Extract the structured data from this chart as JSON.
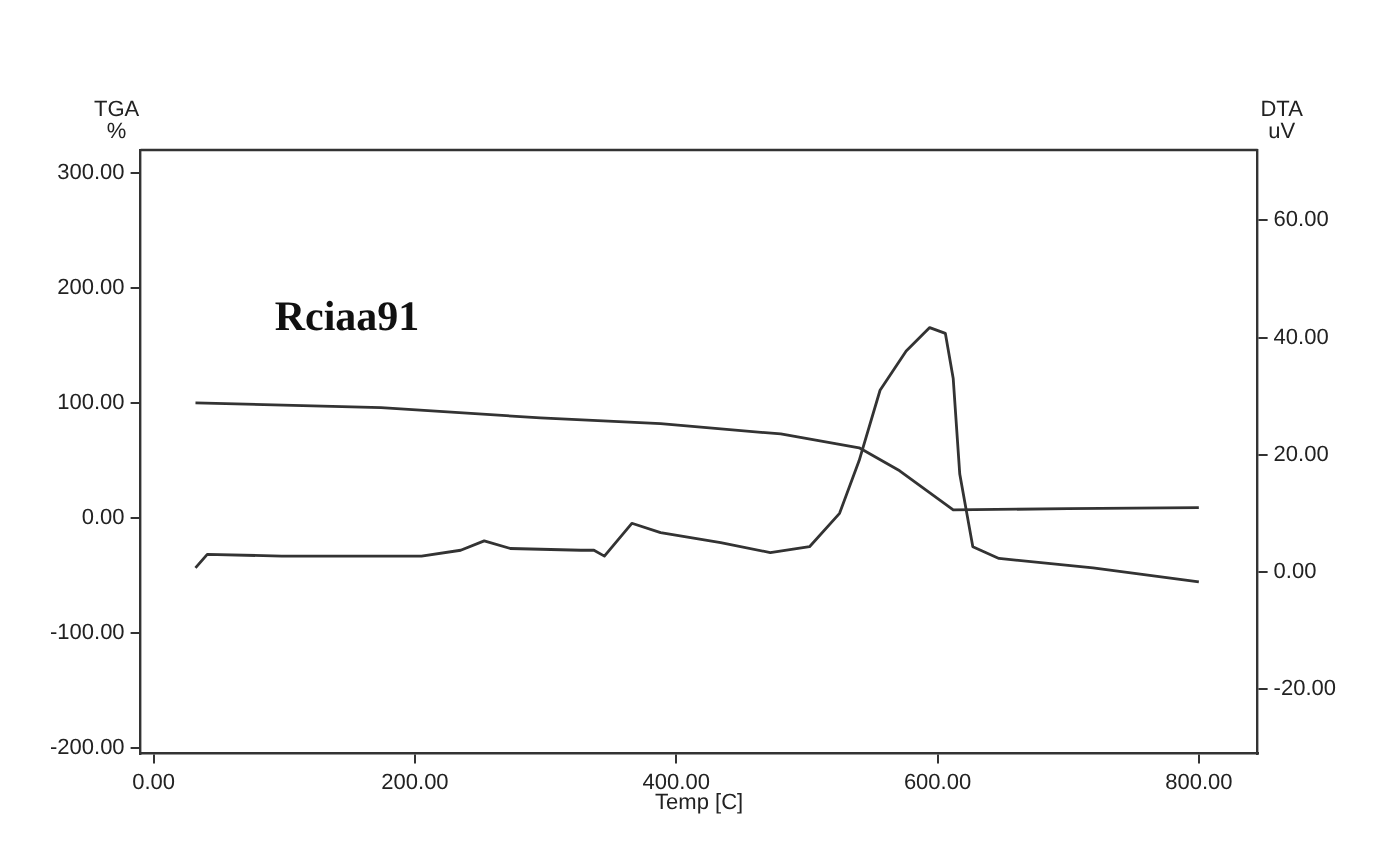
{
  "chart_data": {
    "type": "line",
    "xlabel": "Temp [C]",
    "ylabel": "TGA\n%",
    "y2label": "DTA\nuV",
    "annotations": [
      "Rciaa91"
    ],
    "xlim": [
      -10,
      845
    ],
    "xticks": [
      {
        "value": 0,
        "label": "0.00"
      },
      {
        "value": 200,
        "label": "200.00"
      },
      {
        "value": 400,
        "label": "400.00"
      },
      {
        "value": 600,
        "label": "600.00"
      },
      {
        "value": 800,
        "label": "800.00"
      }
    ],
    "ylim": [
      -205,
      320
    ],
    "yticks": [
      {
        "value": -200,
        "label": "-200.00"
      },
      {
        "value": -100,
        "label": "-100.00"
      },
      {
        "value": 0,
        "label": "0.00"
      },
      {
        "value": 100,
        "label": "100.00"
      },
      {
        "value": 200,
        "label": "200.00"
      },
      {
        "value": 300,
        "label": "300.00"
      }
    ],
    "y2lim": [
      -31,
      72
    ],
    "y2ticks": [
      {
        "value": -20,
        "label": "-20.00"
      },
      {
        "value": 0,
        "label": "0.00"
      },
      {
        "value": 20,
        "label": "20.00"
      },
      {
        "value": 40,
        "label": "40.00"
      },
      {
        "value": 60,
        "label": "60.00"
      }
    ],
    "grid": false,
    "series": [
      {
        "color": "#333333",
        "x": [
          32,
          174,
          296,
          388,
          480,
          510,
          540,
          571,
          612,
          700,
          800
        ],
        "values": [
          100,
          96,
          87,
          82,
          73,
          67,
          61,
          41,
          7,
          8,
          9
        ]
      },
      {
        "color": "#333333",
        "axis": "y2",
        "x": [
          32,
          41,
          98,
          205,
          235,
          253,
          273,
          327,
          337,
          345,
          366,
          388,
          434,
          472,
          502,
          525,
          540,
          556,
          576,
          594,
          606,
          612,
          617,
          627,
          647,
          719,
          800
        ],
        "values": [
          0.7,
          3,
          2.7,
          2.7,
          3.7,
          5.3,
          4,
          3.7,
          3.7,
          2.7,
          8.3,
          6.7,
          5,
          3.3,
          4.3,
          10,
          19,
          31,
          37.7,
          41.7,
          40.7,
          33,
          16.7,
          4.3,
          2.3,
          0.7,
          -1.7
        ]
      }
    ]
  }
}
